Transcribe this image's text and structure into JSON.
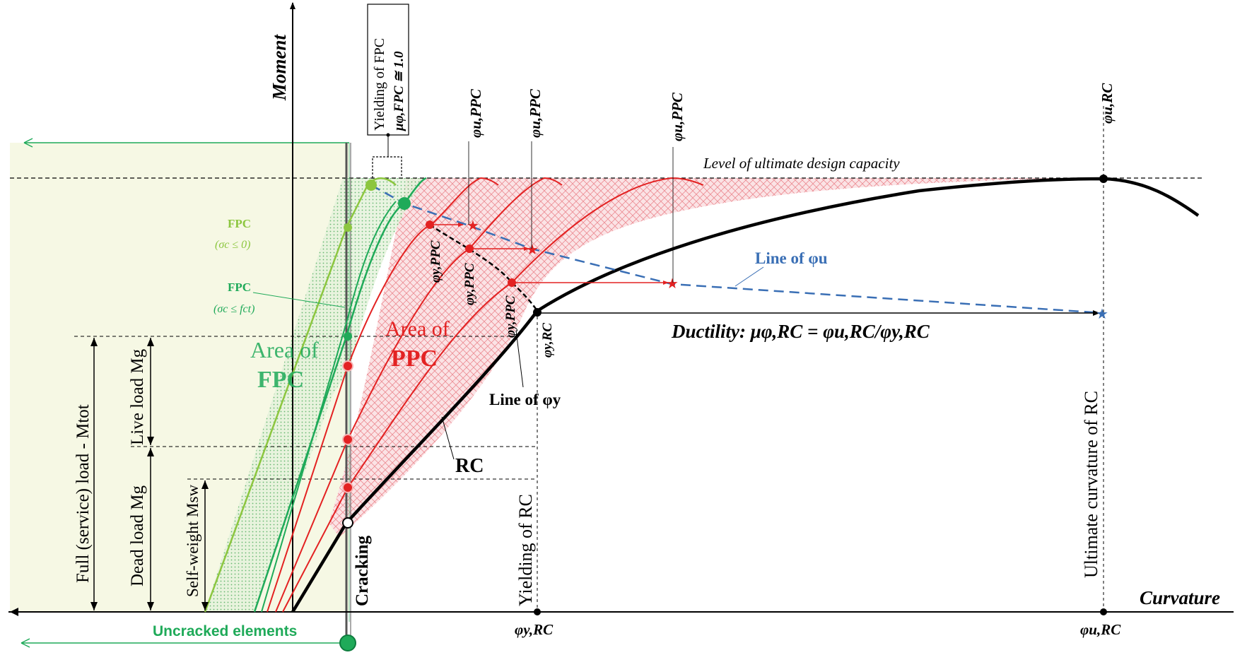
{
  "axes": {
    "y_label": "Moment",
    "x_label": "Curvature",
    "x_tick_yield": "φy,RC",
    "x_tick_ultimate": "φu,RC"
  },
  "yield_box": {
    "line1": "Yielding of FPC",
    "line2": "μφ,FPC ≅ 1.0"
  },
  "level_label": "Level of ultimate design capacity",
  "phi_u_labels": {
    "ppc_1": "φu,PPC",
    "ppc_2": "φu,PPC",
    "ppc_3": "φu,PPC",
    "rc": "φu,RC"
  },
  "phi_y_labels": {
    "ppc_1": "φy,PPC",
    "ppc_2": "φy,PPC",
    "ppc_3": "φy,PPC",
    "rc": "φy,RC"
  },
  "fpc_labels": {
    "fpc1": "FPC",
    "fpc1_cond": "(σc ≤ 0)",
    "fpc2": "FPC",
    "fpc2_cond": "(σc ≤ fct)"
  },
  "areas": {
    "fpc_line1": "Area of",
    "fpc_line2": "FPC",
    "ppc_line1": "Area of",
    "ppc_line2": "PPC"
  },
  "line_phi_u": "Line of φu",
  "line_phi_y": "Line of φy",
  "ductility": "Ductility:  μφ,RC = φu,RC/φy,RC",
  "rc_label": "RC",
  "vertical_labels": {
    "full_load": "Full (service) load - Mtot",
    "live_load": "Live load Mg",
    "dead_load": "Dead load Mg",
    "self_weight": "Self-weight Msw",
    "cracking": "Cracking",
    "yielding_rc": "Yielding of RC",
    "ultimate_rc": "Ultimate curvature of RC"
  },
  "uncracked": "Uncracked elements",
  "colors": {
    "black": "#000000",
    "light_green": "#8cc63f",
    "green": "#1faa59",
    "red": "#e32222",
    "blue": "#3a6fb5",
    "pale_green_fill": "#f6f8e4",
    "pink_fill": "#f9d9dc"
  }
}
